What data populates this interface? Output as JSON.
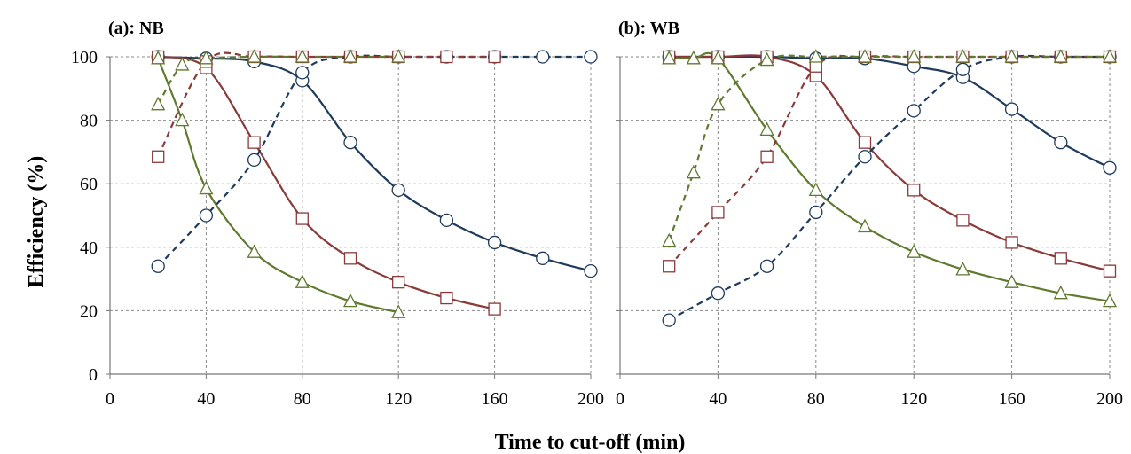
{
  "chart_data": {
    "type": "line",
    "ylabel": "Efficiency (%)",
    "xlabel": "Time to cut-off (min)",
    "grid": true,
    "panels": [
      {
        "label": "(a): NB",
        "xlim": [
          0,
          200
        ],
        "ylim": [
          0,
          100
        ],
        "xticks": [
          "0",
          "40",
          "80",
          "120",
          "160",
          "200"
        ],
        "yticks": [
          "0",
          "20",
          "40",
          "60",
          "80",
          "100"
        ],
        "series": [
          {
            "marker": "circle",
            "style": "solid",
            "color": "#1f3b5c",
            "x": [
              20,
              40,
              60,
              80,
              100,
              120,
              140,
              160,
              180,
              200
            ],
            "y": [
              100,
              99.5,
              98.5,
              92.5,
              73,
              58,
              48.5,
              41.5,
              36.5,
              32.5
            ]
          },
          {
            "marker": "square",
            "style": "solid",
            "color": "#8b3a3a",
            "x": [
              20,
              40,
              60,
              80,
              100,
              120,
              140,
              160
            ],
            "y": [
              100,
              96.5,
              73,
              49,
              36.5,
              29,
              24,
              20.5
            ]
          },
          {
            "marker": "triangle",
            "style": "solid",
            "color": "#5f7a2f",
            "x": [
              20,
              30,
              40,
              60,
              80,
              100,
              120
            ],
            "y": [
              99.5,
              80,
              58.5,
              38.5,
              29,
              23,
              19.5
            ]
          },
          {
            "marker": "circle",
            "style": "dashed",
            "color": "#1f3b5c",
            "x": [
              20,
              40,
              60,
              80,
              100,
              120,
              140,
              160,
              180,
              200
            ],
            "y": [
              34,
              50,
              67.5,
              95,
              100,
              100,
              100,
              100,
              100,
              100
            ]
          },
          {
            "marker": "square",
            "style": "dashed",
            "color": "#8b3a3a",
            "x": [
              20,
              40,
              60,
              80,
              100,
              120,
              140,
              160
            ],
            "y": [
              68.5,
              98.5,
              100,
              100,
              100,
              100,
              100,
              100
            ]
          },
          {
            "marker": "triangle",
            "style": "dashed",
            "color": "#5f7a2f",
            "x": [
              20,
              30,
              40,
              60,
              80,
              100,
              120
            ],
            "y": [
              85,
              97.5,
              99.5,
              100,
              100,
              100,
              100
            ]
          }
        ]
      },
      {
        "label": "(b): WB",
        "xlim": [
          0,
          200
        ],
        "ylim": [
          0,
          100
        ],
        "xticks": [
          "0",
          "40",
          "80",
          "120",
          "160",
          "200"
        ],
        "yticks": [],
        "series": [
          {
            "marker": "circle",
            "style": "solid",
            "color": "#1f3b5c",
            "x": [
              20,
              40,
              60,
              80,
              100,
              120,
              140,
              160,
              180,
              200
            ],
            "y": [
              100,
              100,
              100,
              99.5,
              99.5,
              97,
              93.5,
              83.5,
              73,
              65
            ]
          },
          {
            "marker": "square",
            "style": "solid",
            "color": "#8b3a3a",
            "x": [
              20,
              40,
              60,
              80,
              100,
              120,
              140,
              160,
              180,
              200
            ],
            "y": [
              100,
              100,
              100,
              94,
              73,
              58,
              48.5,
              41.5,
              36.5,
              32.5
            ]
          },
          {
            "marker": "triangle",
            "style": "solid",
            "color": "#5f7a2f",
            "x": [
              20,
              30,
              40,
              60,
              80,
              100,
              120,
              140,
              160,
              180,
              200
            ],
            "y": [
              99.5,
              99.5,
              99.5,
              77,
              58,
              46.5,
              38.5,
              33,
              29,
              25.5,
              23
            ]
          },
          {
            "marker": "circle",
            "style": "dashed",
            "color": "#1f3b5c",
            "x": [
              20,
              40,
              60,
              80,
              100,
              120,
              140,
              160,
              180,
              200
            ],
            "y": [
              17,
              25.5,
              34,
              51,
              68.5,
              83,
              96,
              100,
              100,
              100
            ]
          },
          {
            "marker": "square",
            "style": "dashed",
            "color": "#8b3a3a",
            "x": [
              20,
              40,
              60,
              80,
              100,
              120,
              140,
              160,
              180,
              200
            ],
            "y": [
              34,
              51,
              68.5,
              97,
              100,
              100,
              100,
              100,
              100,
              100
            ]
          },
          {
            "marker": "triangle",
            "style": "dashed",
            "color": "#5f7a2f",
            "x": [
              20,
              30,
              40,
              60,
              80,
              100,
              120,
              140,
              160,
              180,
              200
            ],
            "y": [
              42,
              63.5,
              85,
              99,
              100,
              100,
              100,
              100,
              100,
              100,
              100
            ]
          }
        ]
      }
    ]
  }
}
